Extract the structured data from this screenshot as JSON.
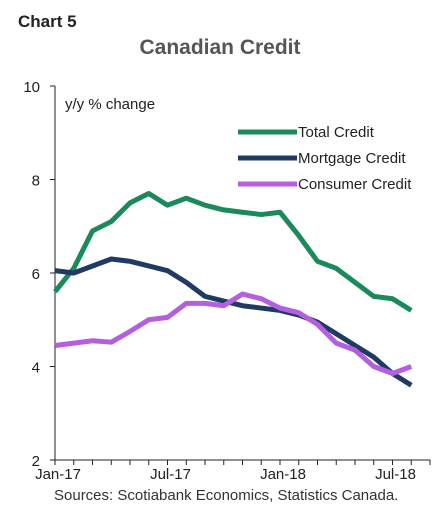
{
  "header": {
    "chart_label": "Chart 5",
    "title": "Canadian Credit"
  },
  "footer": {
    "source": "Sources: Scotiabank Economics, Statistics Canada."
  },
  "colors": {
    "total": "#1a8a5a",
    "mortgage": "#1f3a63",
    "consumer": "#b35fe0",
    "axis": "#222222"
  },
  "chart_data": {
    "type": "line",
    "title": "Canadian Credit",
    "xlabel": "",
    "ylabel": "y/y % change",
    "ylim": [
      2,
      10
    ],
    "yticks": [
      "2",
      "4",
      "6",
      "8",
      "10"
    ],
    "xlim": [
      "Jan-17",
      "Sep-18"
    ],
    "xtick_labels": [
      "Jan-17",
      "Jul-17",
      "Jan-18",
      "Jul-18"
    ],
    "legend_position": "top-right",
    "x": [
      "Jan-17",
      "Feb-17",
      "Mar-17",
      "Apr-17",
      "May-17",
      "Jun-17",
      "Jul-17",
      "Aug-17",
      "Sep-17",
      "Oct-17",
      "Nov-17",
      "Dec-17",
      "Jan-18",
      "Feb-18",
      "Mar-18",
      "Apr-18",
      "May-18",
      "Jun-18",
      "Jul-18",
      "Aug-18"
    ],
    "series": [
      {
        "name": "Total Credit",
        "color": "#1a8a5a",
        "values": [
          5.6,
          6.1,
          6.9,
          7.1,
          7.5,
          7.7,
          7.45,
          7.6,
          7.45,
          7.35,
          7.3,
          7.25,
          7.3,
          6.8,
          6.25,
          6.1,
          5.8,
          5.5,
          5.45,
          5.2
        ]
      },
      {
        "name": "Mortgage Credit",
        "color": "#1f3a63",
        "values": [
          6.05,
          6.0,
          6.15,
          6.3,
          6.25,
          6.15,
          6.05,
          5.8,
          5.5,
          5.4,
          5.3,
          5.25,
          5.2,
          5.1,
          4.95,
          4.7,
          4.45,
          4.2,
          3.85,
          3.6
        ]
      },
      {
        "name": "Consumer Credit",
        "color": "#b35fe0",
        "values": [
          4.45,
          4.5,
          4.55,
          4.52,
          4.75,
          5.0,
          5.05,
          5.35,
          5.35,
          5.3,
          5.55,
          5.45,
          5.25,
          5.15,
          4.9,
          4.5,
          4.35,
          4.0,
          3.85,
          4.0
        ]
      }
    ]
  }
}
